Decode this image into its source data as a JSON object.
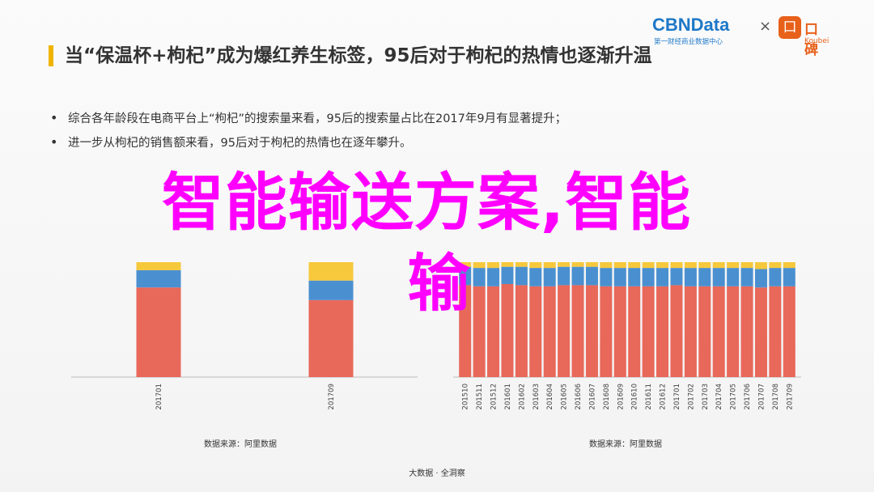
{
  "colors": {
    "accent": "#f0b400",
    "overlay": "#ff00ff",
    "seg_bottom": "#e8685a",
    "seg_mid": "#4a90d0",
    "seg_top": "#f6c83c",
    "axis": "#bbbbbb"
  },
  "header": {
    "title": "当“保温杯+枸杞”成为爆红养生标签，95后对于枸杞的热情也逐渐升温",
    "logo_cbn": "CBNData",
    "logo_cbn_sub": "第一财经商业数据中心",
    "logo_times": "×",
    "logo_koubei_icon": "口",
    "logo_koubei": "口碑",
    "logo_koubei_sub": "Koubei"
  },
  "bullets": [
    "综合各年龄段在电商平台上“枸杞”的搜索量来看，95后的搜索量占比在2017年9月有显著提升；",
    "进一步从枸杞的销售额来看，95后对于枸杞的热情也在逐年攀升。"
  ],
  "overlay_text": "智能输送方案,智能",
  "overlay_text_2": "输",
  "chart_data": [
    {
      "type": "bar",
      "stacked": true,
      "categories": [
        "201701",
        "201709"
      ],
      "series": [
        {
          "values": [
            78,
            67
          ],
          "color": "#e8685a"
        },
        {
          "values": [
            15,
            17
          ],
          "color": "#4a90d0"
        },
        {
          "values": [
            7,
            16
          ],
          "color": "#f6c83c"
        }
      ],
      "ylim": [
        0,
        100
      ],
      "source": "数据来源：阿里数据"
    },
    {
      "type": "bar",
      "stacked": true,
      "categories": [
        "201510",
        "201511",
        "201512",
        "201601",
        "201602",
        "201603",
        "201604",
        "201605",
        "201606",
        "201607",
        "201608",
        "201609",
        "201610",
        "201611",
        "201612",
        "201701",
        "201702",
        "201703",
        "201704",
        "201705",
        "201706",
        "201707",
        "201708",
        "201709"
      ],
      "series": [
        {
          "values": [
            80,
            79,
            79,
            81,
            80,
            79,
            79,
            80,
            80,
            80,
            79,
            79,
            79,
            79,
            79,
            80,
            79,
            79,
            79,
            79,
            79,
            78,
            79,
            79
          ],
          "color": "#e8685a"
        },
        {
          "values": [
            16,
            16,
            16,
            15,
            16,
            16,
            16,
            16,
            16,
            16,
            16,
            16,
            16,
            16,
            16,
            15,
            16,
            16,
            16,
            16,
            16,
            16,
            16,
            16
          ],
          "color": "#4a90d0"
        },
        {
          "values": [
            4,
            5,
            5,
            4,
            4,
            5,
            5,
            4,
            4,
            4,
            5,
            5,
            5,
            5,
            5,
            5,
            5,
            5,
            5,
            5,
            5,
            6,
            5,
            5
          ],
          "color": "#f6c83c"
        }
      ],
      "ylim": [
        0,
        100
      ],
      "source": "数据来源：阿里数据"
    }
  ],
  "footer": "大数据 · 全洞察"
}
